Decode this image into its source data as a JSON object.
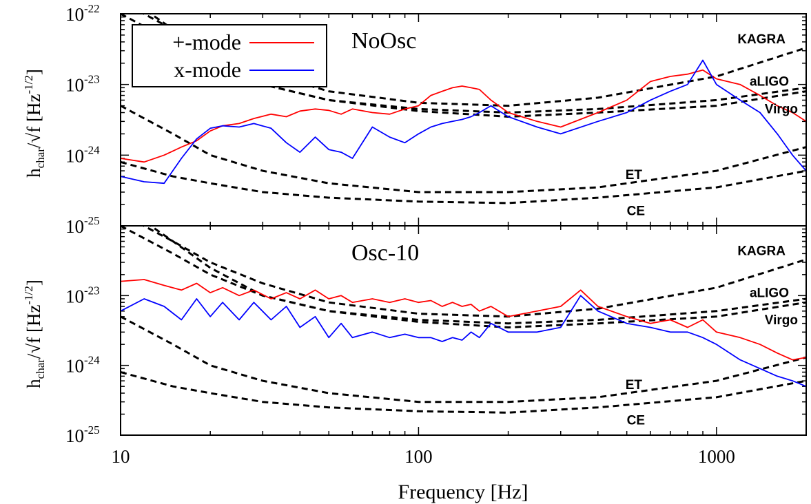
{
  "chart_data": [
    {
      "type": "line",
      "title": "NoOsc",
      "xlabel": "",
      "ylabel": "h_char/√f [Hz^-1/2]",
      "x_scale": "log",
      "y_scale": "log",
      "xlim": [
        10,
        2000
      ],
      "ylim": [
        1e-25,
        1e-22
      ],
      "x_ticks": [
        "10",
        "100",
        "1000"
      ],
      "y_ticks": [
        {
          "base": "10",
          "exp": "-25"
        },
        {
          "base": "10",
          "exp": "-24"
        },
        {
          "base": "10",
          "exp": "-23"
        },
        {
          "base": "10",
          "exp": "-22"
        }
      ],
      "legend": {
        "position": "top-left",
        "entries": [
          "+-mode",
          "x-mode"
        ]
      },
      "series": [
        {
          "name": "+-mode",
          "color": "#ff0000",
          "x": [
            10,
            12,
            14,
            16,
            18,
            20,
            22,
            25,
            28,
            32,
            36,
            40,
            45,
            50,
            55,
            60,
            70,
            80,
            90,
            100,
            110,
            120,
            130,
            140,
            150,
            160,
            175,
            200,
            250,
            300,
            400,
            500,
            600,
            700,
            800,
            900,
            1000,
            1200,
            1400,
            1600,
            1800,
            2000
          ],
          "y": [
            9e-25,
            8e-25,
            1e-24,
            1.3e-24,
            1.6e-24,
            2.2e-24,
            2.6e-24,
            2.8e-24,
            3.3e-24,
            3.8e-24,
            3.5e-24,
            4.2e-24,
            4.5e-24,
            4.3e-24,
            3.8e-24,
            4.5e-24,
            4e-24,
            3.8e-24,
            4.5e-24,
            5e-24,
            7e-24,
            8e-24,
            9e-24,
            9.5e-24,
            9e-24,
            8.5e-24,
            6e-24,
            4e-24,
            3e-24,
            2.5e-24,
            4e-24,
            6e-24,
            1.1e-23,
            1.3e-23,
            1.4e-23,
            1.6e-23,
            1.2e-23,
            1e-23,
            7e-24,
            5e-24,
            4e-24,
            3e-24
          ]
        },
        {
          "name": "x-mode",
          "color": "#0000ff",
          "x": [
            10,
            12,
            14,
            16,
            18,
            20,
            22,
            25,
            28,
            32,
            36,
            40,
            45,
            50,
            55,
            60,
            70,
            80,
            90,
            100,
            110,
            120,
            130,
            140,
            150,
            160,
            175,
            200,
            250,
            300,
            400,
            500,
            600,
            700,
            800,
            900,
            1000,
            1200,
            1400,
            1600,
            1800,
            2000
          ],
          "y": [
            5e-25,
            4.2e-25,
            4e-25,
            9e-25,
            1.7e-24,
            2.4e-24,
            2.6e-24,
            2.5e-24,
            2.8e-24,
            2.4e-24,
            1.5e-24,
            1.1e-24,
            1.8e-24,
            1.2e-24,
            1.1e-24,
            9e-25,
            2.5e-24,
            1.8e-24,
            1.5e-24,
            2e-24,
            2.5e-24,
            2.8e-24,
            3e-24,
            3.2e-24,
            3.5e-24,
            4e-24,
            5e-24,
            3.5e-24,
            2.5e-24,
            2e-24,
            3e-24,
            4e-24,
            6e-24,
            8e-24,
            1e-23,
            2.2e-23,
            1e-23,
            6e-24,
            4e-24,
            2e-24,
            1e-24,
            6e-25
          ]
        }
      ],
      "detectors": [
        {
          "label": "KAGRA",
          "x": [
            10,
            15,
            20,
            30,
            50,
            100,
            200,
            400,
            1000,
            2000
          ],
          "y": [
            1.5e-22,
            6e-23,
            3e-23,
            1.5e-23,
            8e-24,
            5.5e-24,
            5e-24,
            6.5e-24,
            1.3e-23,
            3.3e-23
          ]
        },
        {
          "label": "aLIGO",
          "x": [
            10,
            15,
            20,
            30,
            50,
            100,
            200,
            400,
            1000,
            2000
          ],
          "y": [
            2e-22,
            6e-23,
            2.5e-23,
            1e-23,
            6e-24,
            4.5e-24,
            4e-24,
            4.5e-24,
            6e-24,
            9e-24
          ]
        },
        {
          "label": "Virgo",
          "x": [
            10,
            15,
            20,
            30,
            50,
            100,
            200,
            400,
            1000,
            2000
          ],
          "y": [
            1e-22,
            4e-23,
            2e-23,
            1e-23,
            6e-24,
            4.2e-24,
            3.5e-24,
            4e-24,
            5e-24,
            8e-24
          ]
        },
        {
          "label": "ET",
          "x": [
            10,
            15,
            20,
            30,
            50,
            100,
            200,
            400,
            1000,
            2000
          ],
          "y": [
            5e-24,
            2e-24,
            1e-24,
            6e-25,
            4e-25,
            3e-25,
            3e-25,
            3.5e-25,
            6e-25,
            1.3e-24
          ]
        },
        {
          "label": "CE",
          "x": [
            10,
            15,
            20,
            30,
            50,
            100,
            200,
            400,
            1000,
            2000
          ],
          "y": [
            8e-25,
            5e-25,
            4e-25,
            3e-25,
            2.5e-25,
            2.2e-25,
            2.1e-25,
            2.5e-25,
            3.5e-25,
            6e-25
          ]
        }
      ]
    },
    {
      "type": "line",
      "title": "Osc-10",
      "xlabel": "Frequency [Hz]",
      "ylabel": "h_char/√f [Hz^-1/2]",
      "x_scale": "log",
      "y_scale": "log",
      "xlim": [
        10,
        2000
      ],
      "ylim": [
        1e-25,
        1e-22
      ],
      "x_ticks": [
        "10",
        "100",
        "1000"
      ],
      "y_ticks": [
        {
          "base": "10",
          "exp": "-25"
        },
        {
          "base": "10",
          "exp": "-24"
        },
        {
          "base": "10",
          "exp": "-23"
        }
      ],
      "series": [
        {
          "name": "+-mode",
          "color": "#ff0000",
          "x": [
            10,
            12,
            14,
            16,
            18,
            20,
            22,
            25,
            28,
            32,
            36,
            40,
            45,
            50,
            55,
            60,
            70,
            80,
            90,
            100,
            110,
            120,
            130,
            140,
            150,
            160,
            175,
            200,
            250,
            300,
            350,
            400,
            500,
            600,
            700,
            800,
            900,
            1000,
            1200,
            1400,
            1600,
            1800,
            2000
          ],
          "y": [
            1.6e-23,
            1.7e-23,
            1.4e-23,
            1.2e-23,
            1.5e-23,
            1.1e-23,
            1.3e-23,
            1e-23,
            1.2e-23,
            9e-24,
            1.1e-23,
            9e-24,
            1.2e-23,
            9e-24,
            1e-23,
            8e-24,
            9e-24,
            8e-24,
            9e-24,
            8e-24,
            8.5e-24,
            7e-24,
            8e-24,
            7e-24,
            7.5e-24,
            6e-24,
            7e-24,
            5e-24,
            6e-24,
            7e-24,
            1.2e-23,
            7e-24,
            5e-24,
            4e-24,
            4.5e-24,
            3.5e-24,
            4.5e-24,
            3e-24,
            2.5e-24,
            2e-24,
            1.5e-24,
            1.2e-24,
            1.3e-24
          ]
        },
        {
          "name": "x-mode",
          "color": "#0000ff",
          "x": [
            10,
            12,
            14,
            16,
            18,
            20,
            22,
            25,
            28,
            32,
            36,
            40,
            45,
            50,
            55,
            60,
            70,
            80,
            90,
            100,
            110,
            120,
            130,
            140,
            150,
            160,
            175,
            200,
            250,
            300,
            350,
            400,
            500,
            600,
            700,
            800,
            900,
            1000,
            1200,
            1400,
            1600,
            1800,
            2000
          ],
          "y": [
            6e-24,
            9e-24,
            7e-24,
            4.5e-24,
            9e-24,
            5e-24,
            8e-24,
            4.5e-24,
            8e-24,
            4.5e-24,
            7e-24,
            3.5e-24,
            5e-24,
            2.5e-24,
            4e-24,
            2.5e-24,
            3e-24,
            2.5e-24,
            2.8e-24,
            2.5e-24,
            2.5e-24,
            2.2e-24,
            2.5e-24,
            2.3e-24,
            3e-24,
            2.5e-24,
            4e-24,
            3e-24,
            3e-24,
            3.5e-24,
            1e-23,
            6e-24,
            4e-24,
            3.5e-24,
            3e-24,
            3e-24,
            2.5e-24,
            2e-24,
            1.2e-24,
            9e-25,
            7e-25,
            6e-25,
            5e-25
          ]
        }
      ],
      "detectors": [
        {
          "label": "KAGRA",
          "x": [
            10,
            15,
            20,
            30,
            50,
            100,
            200,
            400,
            1000,
            2000
          ],
          "y": [
            1.5e-22,
            6e-23,
            3e-23,
            1.5e-23,
            8e-24,
            5.5e-24,
            5e-24,
            6.5e-24,
            1.3e-23,
            3.3e-23
          ]
        },
        {
          "label": "aLIGO",
          "x": [
            10,
            15,
            20,
            30,
            50,
            100,
            200,
            400,
            1000,
            2000
          ],
          "y": [
            2e-22,
            6e-23,
            2.5e-23,
            1e-23,
            6e-24,
            4.5e-24,
            4e-24,
            4.5e-24,
            6e-24,
            9e-24
          ]
        },
        {
          "label": "Virgo",
          "x": [
            10,
            15,
            20,
            30,
            50,
            100,
            200,
            400,
            1000,
            2000
          ],
          "y": [
            1e-22,
            4e-23,
            2e-23,
            1e-23,
            6e-24,
            4.2e-24,
            3.5e-24,
            4e-24,
            5e-24,
            8e-24
          ]
        },
        {
          "label": "ET",
          "x": [
            10,
            15,
            20,
            30,
            50,
            100,
            200,
            400,
            1000,
            2000
          ],
          "y": [
            5e-24,
            2e-24,
            1e-24,
            6e-25,
            4e-25,
            3e-25,
            3e-25,
            3.5e-25,
            6e-25,
            1.3e-24
          ]
        },
        {
          "label": "CE",
          "x": [
            10,
            15,
            20,
            30,
            50,
            100,
            200,
            400,
            1000,
            2000
          ],
          "y": [
            8e-25,
            5e-25,
            4e-25,
            3e-25,
            2.5e-25,
            2.2e-25,
            2.1e-25,
            2.5e-25,
            3.5e-25,
            6e-25
          ]
        }
      ]
    }
  ]
}
